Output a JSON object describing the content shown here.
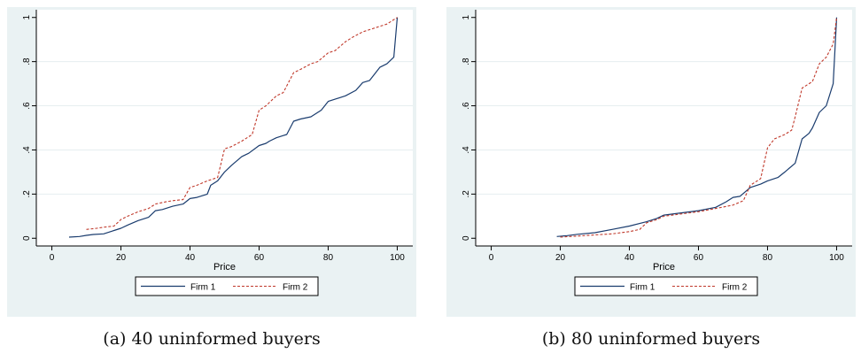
{
  "chart_data": [
    {
      "type": "line",
      "caption": "(a) 40 uninformed buyers",
      "xlabel": "Price",
      "ylabel": "",
      "xlim": [
        0,
        100
      ],
      "ylim": [
        0,
        1
      ],
      "xticks": [
        "0",
        "20",
        "40",
        "60",
        "80",
        "100"
      ],
      "yticks": [
        "0",
        ".2",
        ".4",
        ".6",
        ".8",
        "1"
      ],
      "grid": true,
      "legend_position": "bottom",
      "colors": {
        "background": "#eaf2f3",
        "plot_bg": "#ffffff",
        "firm1": "#1a3c6e",
        "firm2": "#c0392b"
      },
      "series": [
        {
          "name": "Firm 1",
          "style": "solid",
          "x": [
            5,
            8,
            10,
            12,
            15,
            18,
            20,
            22,
            25,
            28,
            30,
            32,
            35,
            38,
            40,
            42,
            45,
            46,
            48,
            50,
            52,
            55,
            57,
            60,
            62,
            63,
            65,
            67,
            68,
            70,
            72,
            75,
            78,
            80,
            82,
            85,
            88,
            90,
            92,
            93,
            95,
            97,
            99,
            100
          ],
          "y": [
            0.005,
            0.008,
            0.013,
            0.017,
            0.02,
            0.035,
            0.045,
            0.06,
            0.08,
            0.095,
            0.125,
            0.13,
            0.145,
            0.155,
            0.18,
            0.185,
            0.2,
            0.24,
            0.26,
            0.3,
            0.33,
            0.37,
            0.385,
            0.42,
            0.43,
            0.44,
            0.455,
            0.465,
            0.47,
            0.53,
            0.54,
            0.55,
            0.58,
            0.62,
            0.63,
            0.645,
            0.67,
            0.705,
            0.715,
            0.735,
            0.775,
            0.79,
            0.82,
            1.0
          ]
        },
        {
          "name": "Firm 2",
          "style": "dashed",
          "x": [
            10,
            13,
            15,
            18,
            20,
            22,
            25,
            28,
            30,
            33,
            35,
            38,
            40,
            42,
            45,
            48,
            50,
            52,
            55,
            58,
            60,
            62,
            65,
            67,
            70,
            72,
            75,
            77,
            80,
            82,
            85,
            87,
            90,
            92,
            95,
            97,
            99,
            100
          ],
          "y": [
            0.04,
            0.045,
            0.05,
            0.055,
            0.085,
            0.1,
            0.12,
            0.135,
            0.155,
            0.165,
            0.17,
            0.175,
            0.23,
            0.24,
            0.26,
            0.275,
            0.405,
            0.415,
            0.44,
            0.47,
            0.58,
            0.6,
            0.645,
            0.66,
            0.75,
            0.765,
            0.79,
            0.8,
            0.84,
            0.85,
            0.89,
            0.91,
            0.935,
            0.945,
            0.96,
            0.97,
            0.99,
            1.0
          ]
        }
      ]
    },
    {
      "type": "line",
      "caption": "(b) 80 uninformed buyers",
      "xlabel": "Price",
      "ylabel": "",
      "xlim": [
        0,
        100
      ],
      "ylim": [
        0,
        1
      ],
      "xticks": [
        "0",
        "20",
        "40",
        "60",
        "80",
        "100"
      ],
      "yticks": [
        "0",
        ".2",
        ".4",
        ".6",
        ".8",
        "1"
      ],
      "grid": true,
      "legend_position": "bottom",
      "colors": {
        "background": "#eaf2f3",
        "plot_bg": "#ffffff",
        "firm1": "#1a3c6e",
        "firm2": "#c0392b"
      },
      "series": [
        {
          "name": "Firm 1",
          "style": "solid",
          "x": [
            19,
            22,
            25,
            30,
            35,
            40,
            45,
            48,
            50,
            55,
            60,
            65,
            68,
            70,
            72,
            75,
            78,
            80,
            83,
            85,
            88,
            90,
            92,
            93,
            95,
            97,
            99,
            100
          ],
          "y": [
            0.008,
            0.012,
            0.018,
            0.025,
            0.04,
            0.055,
            0.075,
            0.09,
            0.105,
            0.115,
            0.125,
            0.14,
            0.165,
            0.185,
            0.19,
            0.23,
            0.245,
            0.26,
            0.275,
            0.3,
            0.34,
            0.45,
            0.475,
            0.5,
            0.57,
            0.6,
            0.7,
            1.0
          ]
        },
        {
          "name": "Firm 2",
          "style": "dashed",
          "x": [
            20,
            25,
            30,
            35,
            40,
            43,
            45,
            48,
            50,
            55,
            60,
            65,
            70,
            73,
            75,
            78,
            80,
            82,
            85,
            87,
            88,
            90,
            92,
            93,
            95,
            97,
            99,
            100
          ],
          "y": [
            0.005,
            0.01,
            0.015,
            0.02,
            0.03,
            0.04,
            0.07,
            0.085,
            0.1,
            0.11,
            0.12,
            0.135,
            0.15,
            0.17,
            0.24,
            0.27,
            0.41,
            0.45,
            0.47,
            0.49,
            0.55,
            0.68,
            0.7,
            0.71,
            0.79,
            0.82,
            0.88,
            1.0
          ]
        }
      ]
    }
  ]
}
